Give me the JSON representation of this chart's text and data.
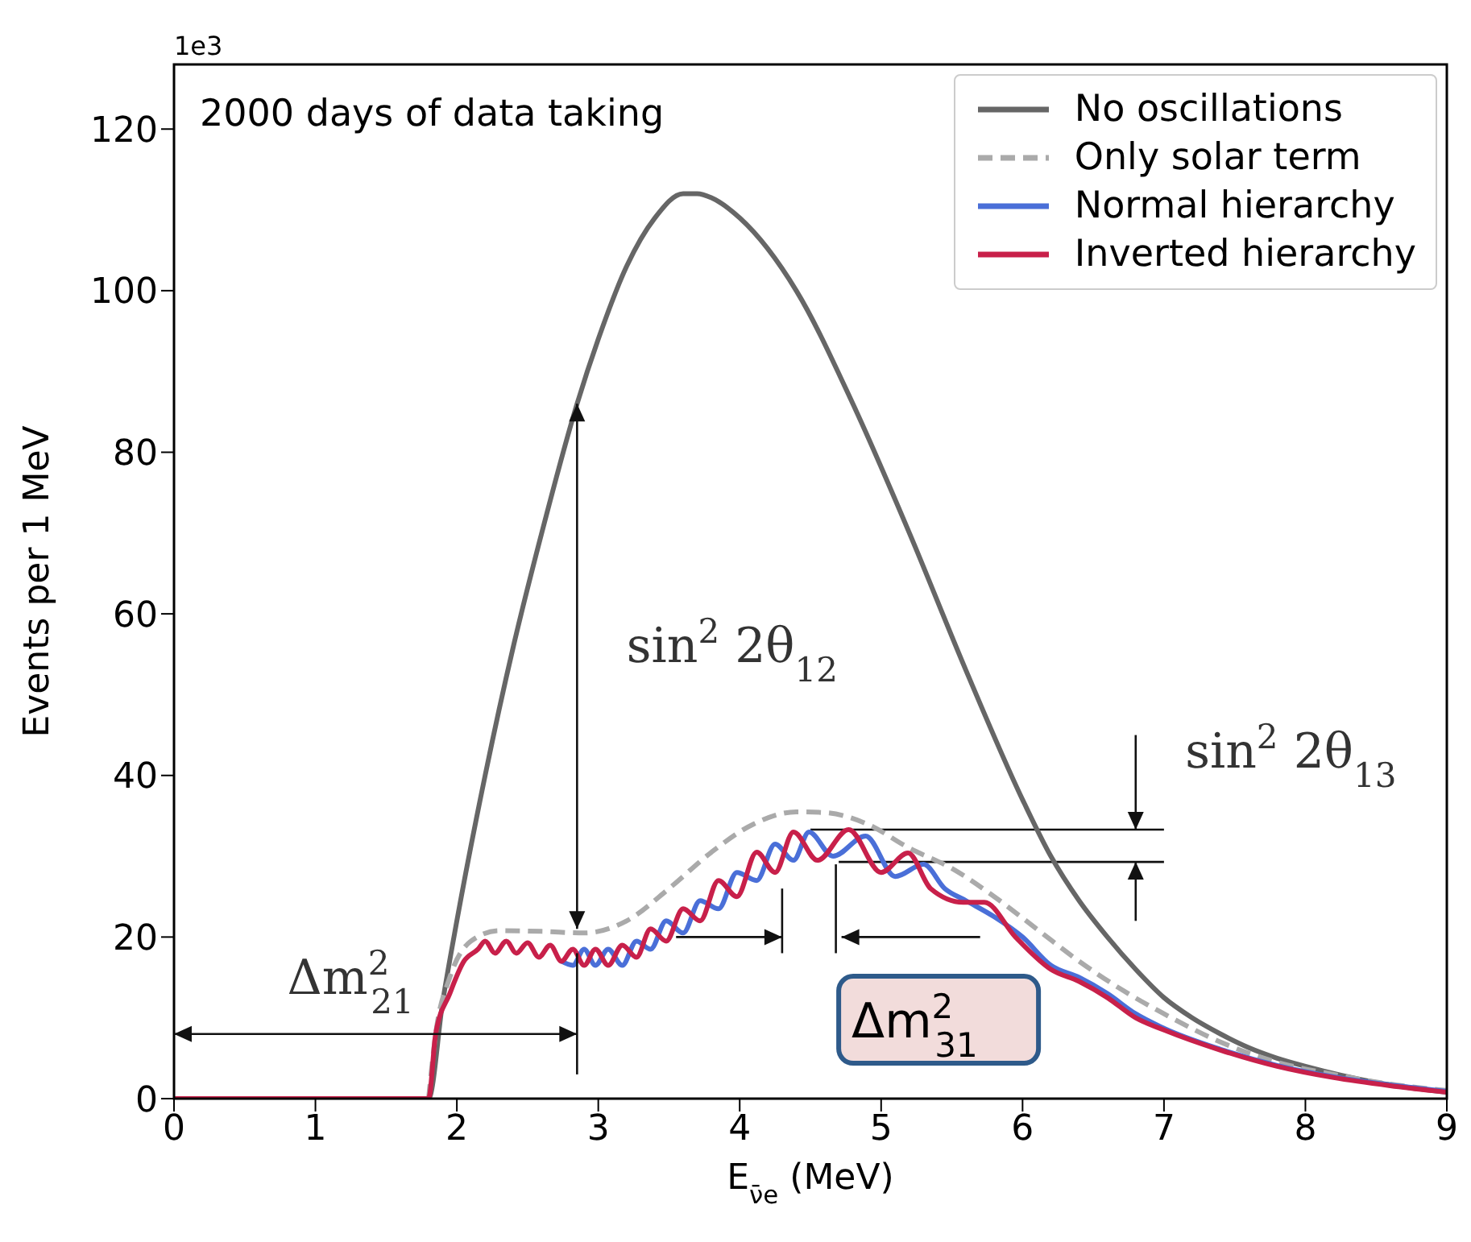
{
  "chart_data": {
    "type": "line",
    "xlabel": "E$_{ν̄e}$ (MeV)",
    "ylabel": "Events per 1 MeV",
    "xlim": [
      0,
      9
    ],
    "xticks": [
      0,
      1,
      2,
      3,
      4,
      5,
      6,
      7,
      8,
      9
    ],
    "ylim": [
      0,
      128
    ],
    "yticks": [
      0,
      20,
      40,
      60,
      80,
      100,
      120
    ],
    "legend": "top right",
    "marker": "none",
    "annotations": [
      "1e3",
      "2000 days of data taking",
      "sin$^{2}$ 2θ$_{12}$",
      "sin$^{2}$ 2θ$_{13}$",
      "Δm$^{2}$$_{21}$",
      {
        "text": "Δm$^{2}$$_{31}$",
        "x": 4.7,
        "y": 29.3
      }
    ],
    "ref_lines": [
      {
        "axis": "y",
        "value": 33.3,
        "color": "#111111"
      },
      {
        "axis": "y",
        "value": 29.3,
        "color": "#111111"
      }
    ],
    "series": [
      {
        "name": "No oscillations",
        "color": "#666666",
        "line_style": "solid",
        "x": [
          0,
          1.8,
          1.9,
          2.0,
          2.2,
          2.4,
          2.6,
          2.85,
          3.0,
          3.2,
          3.4,
          3.6,
          3.7,
          3.8,
          4.0,
          4.4,
          4.8,
          5.2,
          5.6,
          6.0,
          6.2,
          6.4,
          6.6,
          6.8,
          7.0,
          7.2,
          7.4,
          7.6,
          7.8,
          8.0,
          8.5,
          9.0
        ],
        "values": [
          0,
          0,
          12,
          22,
          40,
          56,
          70,
          86,
          94,
          103,
          109,
          112,
          112,
          111.5,
          109,
          100,
          86,
          70,
          53,
          37,
          30,
          24.5,
          20,
          16,
          12.5,
          10,
          8,
          6.3,
          5,
          4,
          2,
          0.8
        ]
      },
      {
        "name": "Only solar term",
        "color": "#aaaaaa",
        "line_style": "dashed",
        "x": [
          1.8,
          1.85,
          1.95,
          2.1,
          2.3,
          2.6,
          2.9,
          3.2,
          3.5,
          3.8,
          4.1,
          4.4,
          4.6,
          4.9,
          5.2,
          5.5,
          5.8,
          6.1,
          6.4,
          6.7,
          7.0,
          7.4,
          7.8,
          8.2,
          8.6,
          9.0
        ],
        "values": [
          0,
          8,
          15,
          19.5,
          20.8,
          20.7,
          20.5,
          22,
          26,
          30.5,
          34,
          35.5,
          35.4,
          34,
          31,
          28.5,
          25,
          21,
          17,
          13.5,
          10.5,
          7,
          4.5,
          3,
          1.8,
          1
        ]
      },
      {
        "name": "Normal hierarchy",
        "color": "#4a6fd8",
        "line_style": "solid",
        "x": [
          2.74,
          2.82,
          2.9,
          2.98,
          3.07,
          3.17,
          3.27,
          3.37,
          3.48,
          3.6,
          3.72,
          3.85,
          3.98,
          4.12,
          4.25,
          4.38,
          4.49,
          4.66,
          4.89,
          5.1,
          5.3,
          5.45,
          5.6,
          5.8,
          6.0,
          6.2,
          6.4,
          6.6,
          6.8,
          7.0,
          7.4,
          7.8,
          8.2,
          8.6,
          9.0
        ],
        "values": [
          17,
          16.5,
          18.5,
          16.5,
          18.5,
          16.5,
          19.5,
          18.5,
          22,
          20.5,
          24.5,
          23.5,
          28,
          27,
          31.5,
          29.5,
          33,
          30,
          32.5,
          27.5,
          29,
          26,
          24.5,
          22.5,
          20,
          16.5,
          15,
          13,
          10.5,
          8.7,
          6.1,
          4.1,
          2.7,
          1.7,
          0.9
        ]
      },
      {
        "name": "Inverted hierarchy",
        "color": "#c8204a",
        "line_style": "solid",
        "x": [
          0,
          1.8,
          1.85,
          1.95,
          2.05,
          2.15,
          2.2,
          2.27,
          2.35,
          2.42,
          2.5,
          2.58,
          2.66,
          2.74,
          2.82,
          2.9,
          2.98,
          3.07,
          3.17,
          3.27,
          3.37,
          3.48,
          3.6,
          3.72,
          3.85,
          3.98,
          4.12,
          4.25,
          4.38,
          4.55,
          4.77,
          5.0,
          5.19,
          5.35,
          5.58,
          5.73,
          5.95,
          6.2,
          6.4,
          6.6,
          6.8,
          7.0,
          7.4,
          7.8,
          8.2,
          8.6,
          9.0
        ],
        "values": [
          0,
          0,
          8,
          13,
          17,
          18.5,
          19.5,
          18,
          19.5,
          18,
          19.3,
          17.5,
          19,
          17,
          18.5,
          16.5,
          18.5,
          16.5,
          19,
          17.5,
          21,
          19.5,
          23.5,
          22,
          27,
          25,
          30.5,
          28,
          33,
          29.5,
          33.3,
          28,
          30.4,
          26,
          24.3,
          24.3,
          20,
          16,
          14.5,
          12.5,
          10,
          8.5,
          6,
          4,
          2.6,
          1.6,
          0.8
        ]
      }
    ]
  }
}
